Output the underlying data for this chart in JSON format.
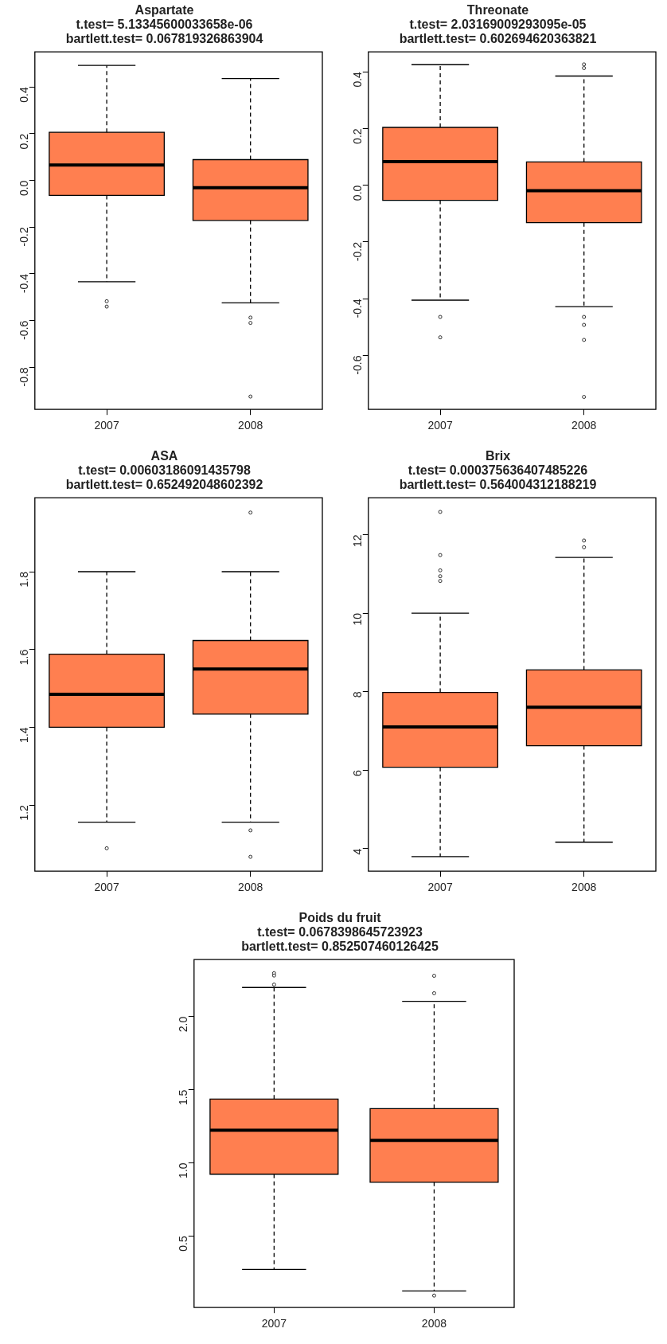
{
  "chart_data": [
    {
      "type": "box",
      "title": "Aspartate\nt.test= 5.13345600033658e-06\nbartlett.test= 0.067819326863904",
      "categories": [
        "2007",
        "2008"
      ],
      "color": "#ff7f50",
      "ylim": [
        -0.98,
        0.55
      ],
      "yticks": [
        -0.8,
        -0.6,
        -0.4,
        -0.2,
        {
          "value": 0,
          "label": "0.0"
        },
        0.2,
        0.4
      ],
      "boxes": [
        {
          "low": -0.434,
          "q1": -0.064,
          "median": 0.066,
          "q3": 0.206,
          "high": 0.492,
          "outliers": [
            -0.517,
            -0.54
          ]
        },
        {
          "low": -0.524,
          "q1": -0.171,
          "median": -0.031,
          "q3": 0.089,
          "high": 0.436,
          "outliers": [
            -0.587,
            -0.61,
            -0.925
          ]
        }
      ]
    },
    {
      "type": "box",
      "title": "Threonate\nt.test= 2.03169009293095e-05\nbartlett.test= 0.602694620363821",
      "categories": [
        "2007",
        "2008"
      ],
      "color": "#ff7f50",
      "ylim": [
        -0.79,
        0.47
      ],
      "yticks": [
        -0.6,
        -0.4,
        -0.2,
        {
          "value": 0,
          "label": "0.0"
        },
        0.2,
        0.4
      ],
      "boxes": [
        {
          "low": -0.405,
          "q1": -0.053,
          "median": 0.083,
          "q3": 0.204,
          "high": 0.425,
          "outliers": [
            -0.464,
            -0.536
          ]
        },
        {
          "low": -0.428,
          "q1": -0.132,
          "median": -0.019,
          "q3": 0.082,
          "high": 0.385,
          "outliers": [
            0.426,
            0.413,
            -0.464,
            -0.492,
            -0.545,
            -0.746
          ]
        }
      ]
    },
    {
      "type": "box",
      "title": "ASA\nt.test= 0.00603186091435798\nbartlett.test= 0.652492048602392",
      "categories": [
        "2007",
        "2008"
      ],
      "color": "#ff7f50",
      "ylim": [
        1.03,
        1.99
      ],
      "yticks": [
        1.2,
        1.4,
        1.6,
        1.8
      ],
      "boxes": [
        {
          "low": 1.156,
          "q1": 1.4,
          "median": 1.485,
          "q3": 1.588,
          "high": 1.8,
          "outliers": [
            1.089
          ]
        },
        {
          "low": 1.156,
          "q1": 1.434,
          "median": 1.55,
          "q3": 1.623,
          "high": 1.8,
          "outliers": [
            1.135,
            1.067,
            1.952
          ]
        }
      ]
    },
    {
      "type": "box",
      "title": "Brix\nt.test= 0.000375636407485226\nbartlett.test= 0.564004312188219",
      "categories": [
        "2007",
        "2008"
      ],
      "color": "#ff7f50",
      "ylim": [
        3.42,
        12.94
      ],
      "yticks": [
        4,
        6,
        8,
        10,
        12
      ],
      "boxes": [
        {
          "low": 3.79,
          "q1": 6.07,
          "median": 7.1,
          "q3": 7.98,
          "high": 10,
          "outliers": [
            12.58,
            11.48,
            11.09,
            10.94,
            10.82
          ]
        },
        {
          "low": 4.16,
          "q1": 6.62,
          "median": 7.6,
          "q3": 8.55,
          "high": 11.42,
          "outliers": [
            11.85,
            11.68
          ]
        }
      ]
    },
    {
      "type": "box",
      "title": "Poids du fruit\nt.test= 0.0678398645723923\nbartlett.test= 0.852507460126425",
      "categories": [
        "2007",
        "2008"
      ],
      "color": "#ff7f50",
      "ylim": [
        0.01,
        2.39
      ],
      "yticks": [
        0.5,
        {
          "value": 1,
          "label": "1.0"
        },
        1.5,
        {
          "value": 2,
          "label": "2.0"
        }
      ],
      "boxes": [
        {
          "low": 0.27,
          "q1": 0.922,
          "median": 1.223,
          "q3": 1.436,
          "high": 2.199,
          "outliers": [
            2.297,
            2.281,
            2.219
          ]
        },
        {
          "low": 0.123,
          "q1": 0.867,
          "median": 1.154,
          "q3": 1.371,
          "high": 2.105,
          "outliers": [
            2.279,
            2.16,
            0.092
          ]
        }
      ]
    }
  ]
}
